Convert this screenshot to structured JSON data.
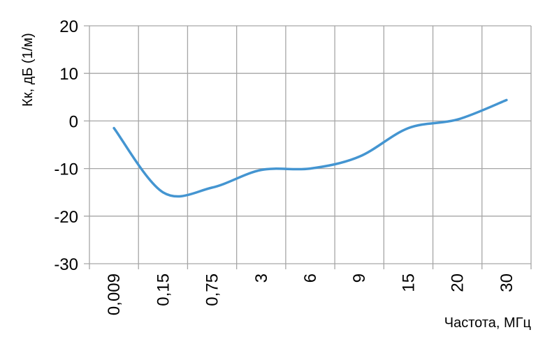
{
  "chart_data": {
    "type": "line",
    "smooth": true,
    "title": "",
    "xlabel": "Частота, МГц",
    "ylabel": "Кк, дБ (1/м)",
    "categories": [
      "0,009",
      "0,15",
      "0,75",
      "3",
      "6",
      "9",
      "15",
      "20",
      "30"
    ],
    "series": [
      {
        "values": [
          -1.5,
          -15.0,
          -14.0,
          -10.3,
          -10.0,
          -7.5,
          -1.5,
          0.3,
          4.4
        ],
        "color": "#4495D1"
      }
    ],
    "ylim": [
      -30,
      20
    ],
    "yticks": [
      "20",
      "10",
      "0",
      "-10",
      "-20",
      "-30"
    ],
    "grid": true,
    "grid_color": "#A6A6A6",
    "legend": "none"
  }
}
